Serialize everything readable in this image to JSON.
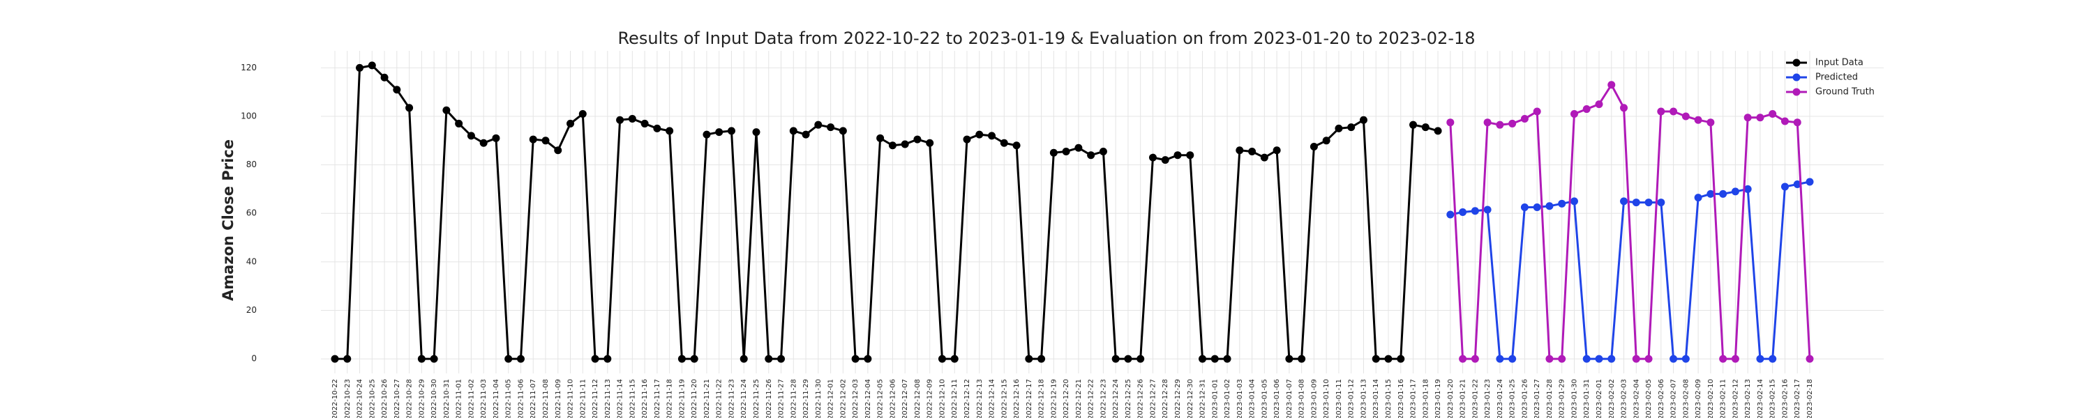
{
  "chart_data": {
    "type": "line",
    "title": "Results of Input Data from 2022-10-22 to 2023-01-19 & Evaluation on from 2023-01-20 to 2023-02-18",
    "y_label": "Amazon Close Price",
    "categories": [
      "2022-10-22",
      "2022-10-23",
      "2022-10-24",
      "2022-10-25",
      "2022-10-26",
      "2022-10-27",
      "2022-10-28",
      "2022-10-29",
      "2022-10-30",
      "2022-10-31",
      "2022-11-01",
      "2022-11-02",
      "2022-11-03",
      "2022-11-04",
      "2022-11-05",
      "2022-11-06",
      "2022-11-07",
      "2022-11-08",
      "2022-11-09",
      "2022-11-10",
      "2022-11-11",
      "2022-11-12",
      "2022-11-13",
      "2022-11-14",
      "2022-11-15",
      "2022-11-16",
      "2022-11-17",
      "2022-11-18",
      "2022-11-19",
      "2022-11-20",
      "2022-11-21",
      "2022-11-22",
      "2022-11-23",
      "2022-11-24",
      "2022-11-25",
      "2022-11-26",
      "2022-11-27",
      "2022-11-28",
      "2022-11-29",
      "2022-11-30",
      "2022-12-01",
      "2022-12-02",
      "2022-12-03",
      "2022-12-04",
      "2022-12-05",
      "2022-12-06",
      "2022-12-07",
      "2022-12-08",
      "2022-12-09",
      "2022-12-10",
      "2022-12-11",
      "2022-12-12",
      "2022-12-13",
      "2022-12-14",
      "2022-12-15",
      "2022-12-16",
      "2022-12-17",
      "2022-12-18",
      "2022-12-19",
      "2022-12-20",
      "2022-12-21",
      "2022-12-22",
      "2022-12-23",
      "2022-12-24",
      "2022-12-25",
      "2022-12-26",
      "2022-12-27",
      "2022-12-28",
      "2022-12-29",
      "2022-12-30",
      "2022-12-31",
      "2023-01-01",
      "2023-01-02",
      "2023-01-03",
      "2023-01-04",
      "2023-01-05",
      "2023-01-06",
      "2023-01-07",
      "2023-01-08",
      "2023-01-09",
      "2023-01-10",
      "2023-01-11",
      "2023-01-12",
      "2023-01-13",
      "2023-01-14",
      "2023-01-15",
      "2023-01-16",
      "2023-01-17",
      "2023-01-18",
      "2023-01-19",
      "2023-01-20",
      "2023-01-21",
      "2023-01-22",
      "2023-01-23",
      "2023-01-24",
      "2023-01-25",
      "2023-01-26",
      "2023-01-27",
      "2023-01-28",
      "2023-01-29",
      "2023-01-30",
      "2023-01-31",
      "2023-02-01",
      "2023-02-02",
      "2023-02-03",
      "2023-02-04",
      "2023-02-05",
      "2023-02-06",
      "2023-02-07",
      "2023-02-08",
      "2023-02-09",
      "2023-02-10",
      "2023-02-11",
      "2023-02-12",
      "2023-02-13",
      "2023-02-14",
      "2023-02-15",
      "2023-02-16",
      "2023-02-17",
      "2023-02-18"
    ],
    "series": [
      {
        "name": "Input Data",
        "color": "#000000",
        "values": [
          0,
          0,
          120,
          121,
          116,
          111,
          103.5,
          0,
          0,
          102.5,
          97,
          92,
          89,
          91,
          0,
          0,
          90.5,
          90,
          86,
          97,
          101,
          0,
          0,
          98.5,
          99,
          97,
          95,
          94,
          0,
          0,
          92.5,
          93.5,
          94,
          0,
          93.5,
          0,
          0,
          94,
          92.5,
          96.5,
          95.5,
          94,
          0,
          0,
          91,
          88,
          88.5,
          90.5,
          89,
          0,
          0,
          90.5,
          92.5,
          92,
          89,
          88,
          0,
          0,
          85,
          85.5,
          87,
          84,
          85.5,
          0,
          0,
          0,
          83,
          82,
          84,
          84,
          0,
          0,
          0,
          86,
          85.5,
          83,
          86,
          0,
          0,
          87.5,
          90,
          95,
          95.5,
          98.5,
          0,
          0,
          0,
          96.5,
          95.5,
          94,
          null,
          null,
          null,
          null,
          null,
          null,
          null,
          null,
          null,
          null,
          null,
          null,
          null,
          null,
          null,
          null,
          null,
          null,
          null,
          null,
          null,
          null,
          null,
          null,
          null,
          null,
          null,
          null,
          null,
          null
        ]
      },
      {
        "name": "Predicted",
        "color": "#1f44e8",
        "values": [
          null,
          null,
          null,
          null,
          null,
          null,
          null,
          null,
          null,
          null,
          null,
          null,
          null,
          null,
          null,
          null,
          null,
          null,
          null,
          null,
          null,
          null,
          null,
          null,
          null,
          null,
          null,
          null,
          null,
          null,
          null,
          null,
          null,
          null,
          null,
          null,
          null,
          null,
          null,
          null,
          null,
          null,
          null,
          null,
          null,
          null,
          null,
          null,
          null,
          null,
          null,
          null,
          null,
          null,
          null,
          null,
          null,
          null,
          null,
          null,
          null,
          null,
          null,
          null,
          null,
          null,
          null,
          null,
          null,
          null,
          null,
          null,
          null,
          null,
          null,
          null,
          null,
          null,
          null,
          null,
          null,
          null,
          null,
          null,
          null,
          null,
          null,
          null,
          null,
          null,
          59.5,
          60.5,
          61,
          61.5,
          0,
          0,
          62.5,
          62.5,
          63,
          64,
          65,
          0,
          0,
          0,
          65,
          64.5,
          64.5,
          64.5,
          0,
          0,
          66.5,
          68,
          68,
          69,
          70,
          0,
          0,
          71,
          72,
          73
        ]
      },
      {
        "name": "Ground Truth",
        "color": "#b01ab8",
        "values": [
          null,
          null,
          null,
          null,
          null,
          null,
          null,
          null,
          null,
          null,
          null,
          null,
          null,
          null,
          null,
          null,
          null,
          null,
          null,
          null,
          null,
          null,
          null,
          null,
          null,
          null,
          null,
          null,
          null,
          null,
          null,
          null,
          null,
          null,
          null,
          null,
          null,
          null,
          null,
          null,
          null,
          null,
          null,
          null,
          null,
          null,
          null,
          null,
          null,
          null,
          null,
          null,
          null,
          null,
          null,
          null,
          null,
          null,
          null,
          null,
          null,
          null,
          null,
          null,
          null,
          null,
          null,
          null,
          null,
          null,
          null,
          null,
          null,
          null,
          null,
          null,
          null,
          null,
          null,
          null,
          null,
          null,
          null,
          null,
          null,
          null,
          null,
          null,
          null,
          null,
          97.5,
          0,
          0,
          97.5,
          96.5,
          97,
          99,
          102,
          0,
          0,
          101,
          103,
          105,
          113,
          103.5,
          0,
          0,
          102,
          102,
          100,
          98.5,
          97.5,
          0,
          0,
          99.5,
          99.5,
          101,
          98,
          97.5,
          0
        ]
      }
    ],
    "ylim": [
      -6,
      127
    ],
    "yticks": [
      0,
      20,
      40,
      60,
      80,
      100,
      120
    ],
    "grid": true,
    "legend": "upper right"
  }
}
